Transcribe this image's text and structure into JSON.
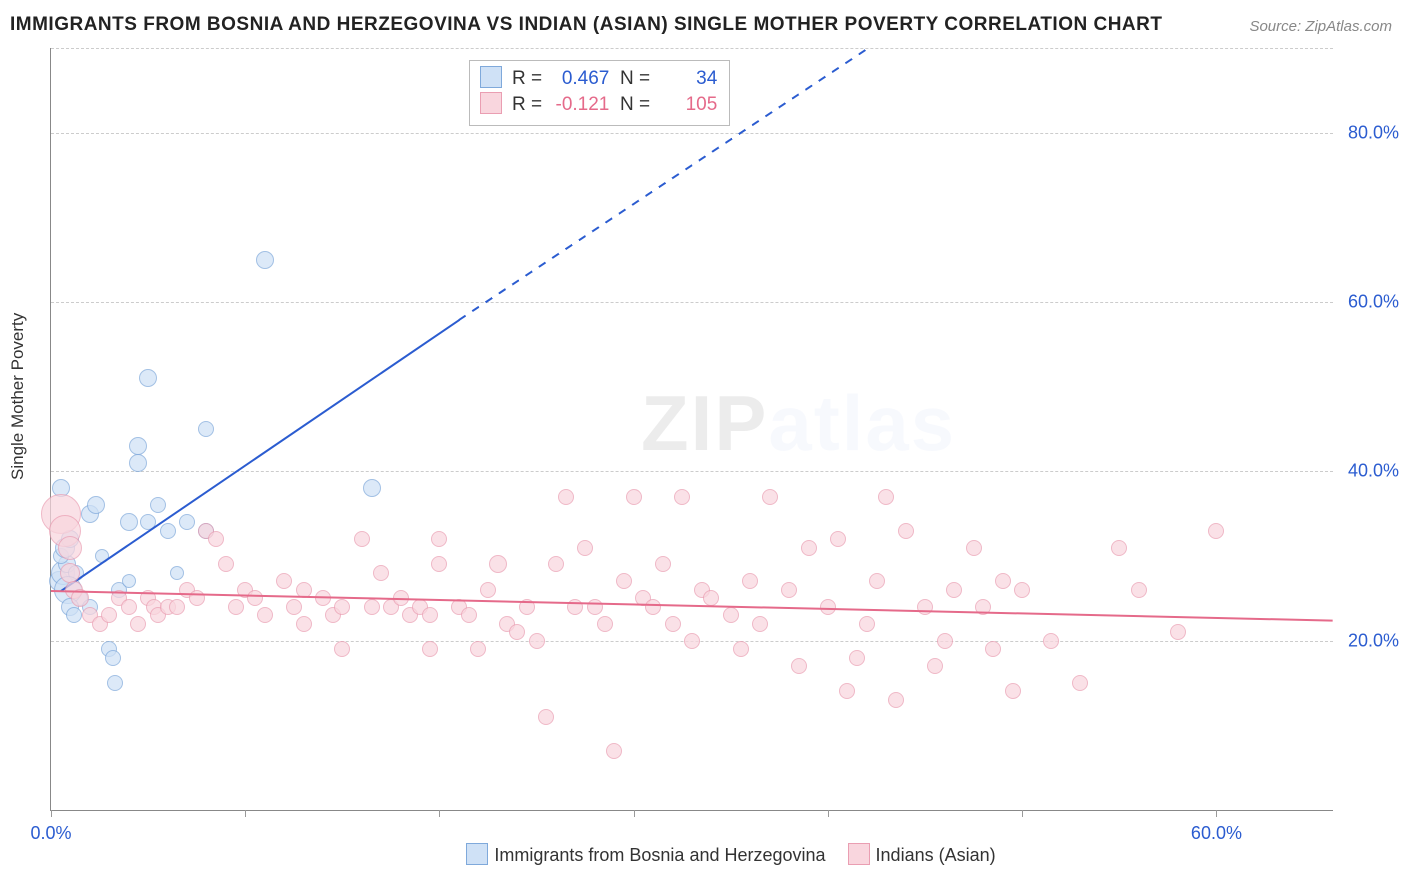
{
  "title": "IMMIGRANTS FROM BOSNIA AND HERZEGOVINA VS INDIAN (ASIAN) SINGLE MOTHER POVERTY CORRELATION CHART",
  "source": "Source: ZipAtlas.com",
  "ylabel": "Single Mother Poverty",
  "watermark": "ZIPatlas",
  "axes": {
    "xlim": [
      0,
      66
    ],
    "ylim": [
      0,
      90
    ],
    "x_ticks": [
      0,
      10,
      20,
      30,
      40,
      50,
      60
    ],
    "x_tick_labels": {
      "0": "0.0%",
      "60": "60.0%"
    },
    "x_color": "#2b5cd0",
    "y_grid": [
      20,
      40,
      60,
      80
    ],
    "y_tick_labels": {
      "20": "20.0%",
      "40": "40.0%",
      "60": "60.0%",
      "80": "80.0%"
    },
    "y_color": "#2b5cd0"
  },
  "series": [
    {
      "key": "bosnia",
      "label": "Immigrants from Bosnia and Herzegovina",
      "fill": "#cfe1f6",
      "stroke": "#7fa9db",
      "R": "0.467",
      "N": "34",
      "val_color": "#2b5cd0",
      "trend": {
        "color": "#2b5cd0",
        "width": 2.4,
        "solid": {
          "x1": 0.5,
          "y1": 26,
          "x2": 21,
          "y2": 58
        },
        "dashed": {
          "x1": 21,
          "y1": 58,
          "x2": 42,
          "y2": 90
        }
      },
      "points": [
        {
          "x": 0.4,
          "y": 27,
          "r": 10
        },
        {
          "x": 0.6,
          "y": 28,
          "r": 12
        },
        {
          "x": 0.8,
          "y": 29,
          "r": 9
        },
        {
          "x": 0.5,
          "y": 30,
          "r": 8
        },
        {
          "x": 0.7,
          "y": 31,
          "r": 10
        },
        {
          "x": 1.0,
          "y": 32,
          "r": 9
        },
        {
          "x": 1.3,
          "y": 28,
          "r": 8
        },
        {
          "x": 1.5,
          "y": 25,
          "r": 8
        },
        {
          "x": 0.9,
          "y": 26,
          "r": 14
        },
        {
          "x": 1.0,
          "y": 24,
          "r": 9
        },
        {
          "x": 1.2,
          "y": 23,
          "r": 8
        },
        {
          "x": 2.0,
          "y": 24,
          "r": 8
        },
        {
          "x": 2.0,
          "y": 35,
          "r": 9
        },
        {
          "x": 2.3,
          "y": 36,
          "r": 9
        },
        {
          "x": 2.6,
          "y": 30,
          "r": 7
        },
        {
          "x": 3.0,
          "y": 19,
          "r": 8
        },
        {
          "x": 3.2,
          "y": 18,
          "r": 8
        },
        {
          "x": 3.3,
          "y": 15,
          "r": 8
        },
        {
          "x": 3.5,
          "y": 26,
          "r": 8
        },
        {
          "x": 4.0,
          "y": 27,
          "r": 7
        },
        {
          "x": 4.0,
          "y": 34,
          "r": 9
        },
        {
          "x": 4.5,
          "y": 41,
          "r": 9
        },
        {
          "x": 4.5,
          "y": 43,
          "r": 9
        },
        {
          "x": 5.0,
          "y": 51,
          "r": 9
        },
        {
          "x": 5.0,
          "y": 34,
          "r": 8
        },
        {
          "x": 5.5,
          "y": 36,
          "r": 8
        },
        {
          "x": 6.0,
          "y": 33,
          "r": 8
        },
        {
          "x": 6.5,
          "y": 28,
          "r": 7
        },
        {
          "x": 7.0,
          "y": 34,
          "r": 8
        },
        {
          "x": 8.0,
          "y": 45,
          "r": 8
        },
        {
          "x": 8.0,
          "y": 33,
          "r": 8
        },
        {
          "x": 11.0,
          "y": 65,
          "r": 9
        },
        {
          "x": 16.5,
          "y": 38,
          "r": 9
        },
        {
          "x": 0.5,
          "y": 38,
          "r": 9
        }
      ]
    },
    {
      "key": "indian",
      "label": "Indians (Asian)",
      "fill": "#f9d6de",
      "stroke": "#ea9eb2",
      "R": "-0.121",
      "N": "105",
      "val_color": "#e56a8a",
      "trend": {
        "color": "#e56a8a",
        "width": 2.2,
        "solid": {
          "x1": 0,
          "y1": 26,
          "x2": 66,
          "y2": 22.5
        }
      },
      "points": [
        {
          "x": 0.5,
          "y": 35,
          "r": 20
        },
        {
          "x": 0.7,
          "y": 33,
          "r": 16
        },
        {
          "x": 1.0,
          "y": 31,
          "r": 12
        },
        {
          "x": 1.0,
          "y": 28,
          "r": 10
        },
        {
          "x": 1.2,
          "y": 26,
          "r": 9
        },
        {
          "x": 1.5,
          "y": 25,
          "r": 9
        },
        {
          "x": 2.0,
          "y": 23,
          "r": 8
        },
        {
          "x": 2.5,
          "y": 22,
          "r": 8
        },
        {
          "x": 3.0,
          "y": 23,
          "r": 8
        },
        {
          "x": 3.5,
          "y": 25,
          "r": 8
        },
        {
          "x": 4.0,
          "y": 24,
          "r": 8
        },
        {
          "x": 4.5,
          "y": 22,
          "r": 8
        },
        {
          "x": 5.0,
          "y": 25,
          "r": 8
        },
        {
          "x": 5.3,
          "y": 24,
          "r": 8
        },
        {
          "x": 5.5,
          "y": 23,
          "r": 8
        },
        {
          "x": 6.0,
          "y": 24,
          "r": 8
        },
        {
          "x": 6.5,
          "y": 24,
          "r": 8
        },
        {
          "x": 7.0,
          "y": 26,
          "r": 8
        },
        {
          "x": 7.5,
          "y": 25,
          "r": 8
        },
        {
          "x": 8.0,
          "y": 33,
          "r": 8
        },
        {
          "x": 8.5,
          "y": 32,
          "r": 8
        },
        {
          "x": 9.0,
          "y": 29,
          "r": 8
        },
        {
          "x": 9.5,
          "y": 24,
          "r": 8
        },
        {
          "x": 10.0,
          "y": 26,
          "r": 8
        },
        {
          "x": 10.5,
          "y": 25,
          "r": 8
        },
        {
          "x": 11.0,
          "y": 23,
          "r": 8
        },
        {
          "x": 12.0,
          "y": 27,
          "r": 8
        },
        {
          "x": 12.5,
          "y": 24,
          "r": 8
        },
        {
          "x": 13.0,
          "y": 26,
          "r": 8
        },
        {
          "x": 13.0,
          "y": 22,
          "r": 8
        },
        {
          "x": 14.0,
          "y": 25,
          "r": 8
        },
        {
          "x": 14.5,
          "y": 23,
          "r": 8
        },
        {
          "x": 15.0,
          "y": 24,
          "r": 8
        },
        {
          "x": 15.0,
          "y": 19,
          "r": 8
        },
        {
          "x": 16.0,
          "y": 32,
          "r": 8
        },
        {
          "x": 16.5,
          "y": 24,
          "r": 8
        },
        {
          "x": 17.0,
          "y": 28,
          "r": 8
        },
        {
          "x": 17.5,
          "y": 24,
          "r": 8
        },
        {
          "x": 18.0,
          "y": 25,
          "r": 8
        },
        {
          "x": 18.5,
          "y": 23,
          "r": 8
        },
        {
          "x": 19.0,
          "y": 24,
          "r": 8
        },
        {
          "x": 19.5,
          "y": 23,
          "r": 8
        },
        {
          "x": 19.5,
          "y": 19,
          "r": 8
        },
        {
          "x": 20.0,
          "y": 32,
          "r": 8
        },
        {
          "x": 20.0,
          "y": 29,
          "r": 8
        },
        {
          "x": 21.0,
          "y": 24,
          "r": 8
        },
        {
          "x": 21.5,
          "y": 23,
          "r": 8
        },
        {
          "x": 22.0,
          "y": 19,
          "r": 8
        },
        {
          "x": 22.5,
          "y": 26,
          "r": 8
        },
        {
          "x": 23.0,
          "y": 29,
          "r": 9
        },
        {
          "x": 23.5,
          "y": 22,
          "r": 8
        },
        {
          "x": 24.0,
          "y": 21,
          "r": 8
        },
        {
          "x": 24.5,
          "y": 24,
          "r": 8
        },
        {
          "x": 25.0,
          "y": 20,
          "r": 8
        },
        {
          "x": 25.5,
          "y": 11,
          "r": 8
        },
        {
          "x": 26.0,
          "y": 29,
          "r": 8
        },
        {
          "x": 26.5,
          "y": 37,
          "r": 8
        },
        {
          "x": 27.0,
          "y": 24,
          "r": 8
        },
        {
          "x": 27.5,
          "y": 31,
          "r": 8
        },
        {
          "x": 28.0,
          "y": 24,
          "r": 8
        },
        {
          "x": 28.5,
          "y": 22,
          "r": 8
        },
        {
          "x": 29.0,
          "y": 7,
          "r": 8
        },
        {
          "x": 29.5,
          "y": 27,
          "r": 8
        },
        {
          "x": 30.0,
          "y": 37,
          "r": 8
        },
        {
          "x": 30.5,
          "y": 25,
          "r": 8
        },
        {
          "x": 31.0,
          "y": 24,
          "r": 8
        },
        {
          "x": 31.5,
          "y": 29,
          "r": 8
        },
        {
          "x": 32.0,
          "y": 22,
          "r": 8
        },
        {
          "x": 32.5,
          "y": 37,
          "r": 8
        },
        {
          "x": 33.0,
          "y": 20,
          "r": 8
        },
        {
          "x": 33.5,
          "y": 26,
          "r": 8
        },
        {
          "x": 34.0,
          "y": 25,
          "r": 8
        },
        {
          "x": 35.0,
          "y": 23,
          "r": 8
        },
        {
          "x": 35.5,
          "y": 19,
          "r": 8
        },
        {
          "x": 36.0,
          "y": 27,
          "r": 8
        },
        {
          "x": 36.5,
          "y": 22,
          "r": 8
        },
        {
          "x": 37.0,
          "y": 37,
          "r": 8
        },
        {
          "x": 38.0,
          "y": 26,
          "r": 8
        },
        {
          "x": 38.5,
          "y": 17,
          "r": 8
        },
        {
          "x": 39.0,
          "y": 31,
          "r": 8
        },
        {
          "x": 40.0,
          "y": 24,
          "r": 8
        },
        {
          "x": 40.5,
          "y": 32,
          "r": 8
        },
        {
          "x": 41.0,
          "y": 14,
          "r": 8
        },
        {
          "x": 41.5,
          "y": 18,
          "r": 8
        },
        {
          "x": 42.0,
          "y": 22,
          "r": 8
        },
        {
          "x": 42.5,
          "y": 27,
          "r": 8
        },
        {
          "x": 43.0,
          "y": 37,
          "r": 8
        },
        {
          "x": 43.5,
          "y": 13,
          "r": 8
        },
        {
          "x": 44.0,
          "y": 33,
          "r": 8
        },
        {
          "x": 45.0,
          "y": 24,
          "r": 8
        },
        {
          "x": 45.5,
          "y": 17,
          "r": 8
        },
        {
          "x": 46.0,
          "y": 20,
          "r": 8
        },
        {
          "x": 46.5,
          "y": 26,
          "r": 8
        },
        {
          "x": 47.5,
          "y": 31,
          "r": 8
        },
        {
          "x": 48.0,
          "y": 24,
          "r": 8
        },
        {
          "x": 49.0,
          "y": 27,
          "r": 8
        },
        {
          "x": 49.5,
          "y": 14,
          "r": 8
        },
        {
          "x": 50.0,
          "y": 26,
          "r": 8
        },
        {
          "x": 51.5,
          "y": 20,
          "r": 8
        },
        {
          "x": 53.0,
          "y": 15,
          "r": 8
        },
        {
          "x": 56.0,
          "y": 26,
          "r": 8
        },
        {
          "x": 58.0,
          "y": 21,
          "r": 8
        },
        {
          "x": 60.0,
          "y": 33,
          "r": 8
        },
        {
          "x": 55.0,
          "y": 31,
          "r": 8
        },
        {
          "x": 48.5,
          "y": 19,
          "r": 8
        }
      ]
    }
  ]
}
